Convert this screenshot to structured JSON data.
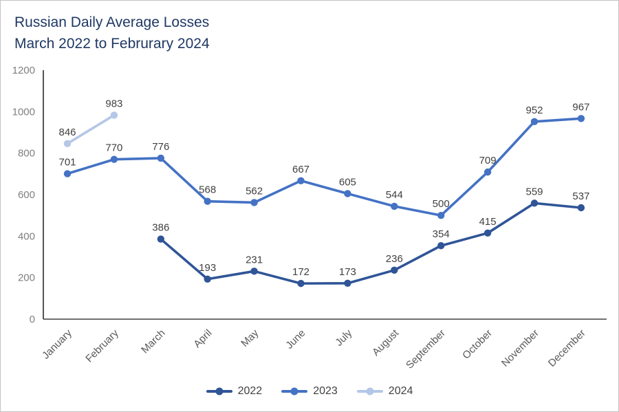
{
  "title": {
    "line1": "Russian Daily Average Losses",
    "line2": "March 2022 to Februrary 2024"
  },
  "chart_data": {
    "type": "line",
    "title": "Russian Daily Average Losses March 2022 to Februrary 2024",
    "xlabel": "",
    "ylabel": "",
    "categories": [
      "January",
      "February",
      "March",
      "April",
      "May",
      "June",
      "July",
      "August",
      "September",
      "October",
      "November",
      "December"
    ],
    "series": [
      {
        "name": "2022",
        "color": "#2F5597",
        "values": [
          null,
          null,
          386,
          193,
          231,
          172,
          173,
          236,
          354,
          415,
          559,
          537
        ]
      },
      {
        "name": "2023",
        "color": "#4472C4",
        "values": [
          701,
          770,
          776,
          568,
          562,
          667,
          605,
          544,
          500,
          709,
          952,
          967
        ]
      },
      {
        "name": "2024",
        "color": "#B4C7E7",
        "values": [
          846,
          983,
          null,
          null,
          null,
          null,
          null,
          null,
          null,
          null,
          null,
          null
        ]
      }
    ],
    "ylim": [
      0,
      1200
    ],
    "yticks": [
      0,
      200,
      400,
      600,
      800,
      1000,
      1200
    ],
    "grid": false,
    "legend_position": "bottom",
    "axis_color": "#404040",
    "ytick_color": "#7F7F7F",
    "xtick_color": "#595959",
    "data_label_color": "#404040",
    "title_color": "#1F3864"
  }
}
